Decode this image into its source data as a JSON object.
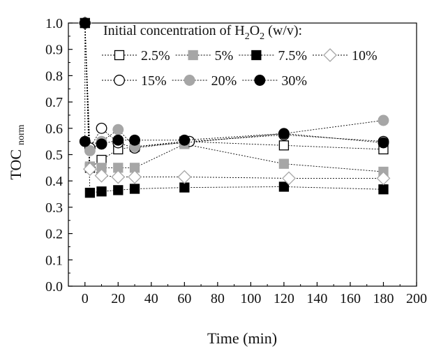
{
  "chart_data": {
    "type": "scatter",
    "xlabel": "Time (min)",
    "ylabel": "TOC",
    "ylabel_subscript": "norm",
    "xlim": [
      -10,
      200
    ],
    "ylim": [
      0.0,
      1.0
    ],
    "xticks": [
      "0",
      "20",
      "40",
      "60",
      "80",
      "100",
      "120",
      "140",
      "160",
      "180",
      "200"
    ],
    "yticks": [
      "0.0",
      "0.1",
      "0.2",
      "0.3",
      "0.4",
      "0.5",
      "0.6",
      "0.7",
      "0.8",
      "0.9",
      "1.0"
    ],
    "legend": {
      "title_text": "Initial concentration of H",
      "title_sub1": "2",
      "title_mid": "O",
      "title_sub2": "2",
      "title_tail": " (w/v):",
      "placement": "top"
    },
    "series": [
      {
        "name": "2.5%",
        "marker": "square-open",
        "color": "#000000",
        "x": [
          0,
          3,
          10,
          20,
          30,
          60,
          120,
          180
        ],
        "y": [
          1.0,
          0.45,
          0.48,
          0.52,
          0.53,
          0.55,
          0.535,
          0.52
        ]
      },
      {
        "name": "5%",
        "marker": "square-filled",
        "color": "#a6a6a6",
        "x": [
          0,
          3,
          10,
          20,
          30,
          60,
          120,
          180
        ],
        "y": [
          1.0,
          0.455,
          0.45,
          0.45,
          0.45,
          0.54,
          0.465,
          0.435
        ]
      },
      {
        "name": "7.5%",
        "marker": "square-filled",
        "color": "#000000",
        "x": [
          0,
          3,
          10,
          20,
          30,
          60,
          120,
          180
        ],
        "y": [
          1.0,
          0.355,
          0.36,
          0.365,
          0.37,
          0.375,
          0.378,
          0.368
        ]
      },
      {
        "name": "10%",
        "marker": "diamond-open",
        "color": "#a6a6a6",
        "x": [
          0,
          3,
          10,
          20,
          30,
          60,
          123,
          180
        ],
        "y": [
          1.0,
          0.445,
          0.42,
          0.415,
          0.415,
          0.415,
          0.41,
          0.41
        ]
      },
      {
        "name": "15%",
        "marker": "circle-open",
        "color": "#000000",
        "x": [
          0,
          3,
          10,
          20,
          30,
          63,
          120,
          180
        ],
        "y": [
          1.0,
          0.525,
          0.6,
          0.545,
          0.525,
          0.55,
          0.575,
          0.55
        ]
      },
      {
        "name": "20%",
        "marker": "circle-filled",
        "color": "#a6a6a6",
        "x": [
          0,
          3,
          10,
          20,
          30,
          60,
          120,
          180
        ],
        "y": [
          1.0,
          0.515,
          0.55,
          0.595,
          0.53,
          0.545,
          0.58,
          0.63
        ]
      },
      {
        "name": "30%",
        "marker": "circle-filled",
        "color": "#000000",
        "x": [
          0,
          0,
          10,
          20,
          30,
          60,
          120,
          180
        ],
        "y": [
          1.0,
          0.55,
          0.54,
          0.555,
          0.555,
          0.555,
          0.58,
          0.545
        ]
      }
    ]
  }
}
